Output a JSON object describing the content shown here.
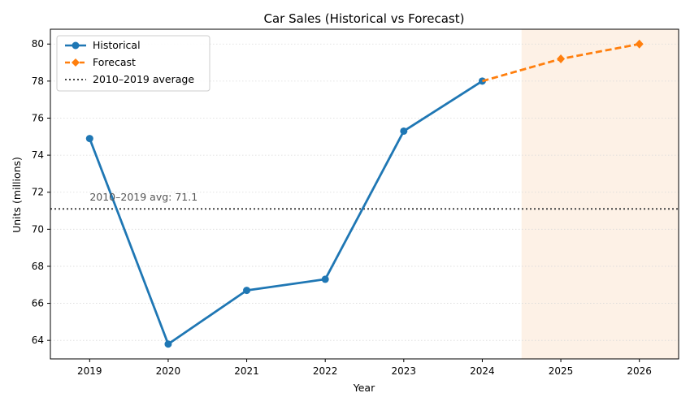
{
  "chart_data": {
    "type": "line",
    "title": "Car Sales (Historical vs Forecast)",
    "xlabel": "Year",
    "ylabel": "Units (millions)",
    "xlim": [
      2018.5,
      2026.5
    ],
    "ylim": [
      63,
      80.8
    ],
    "x_ticks": [
      2019,
      2020,
      2021,
      2022,
      2023,
      2024,
      2025,
      2026
    ],
    "y_ticks": [
      64,
      66,
      68,
      70,
      72,
      74,
      76,
      78,
      80
    ],
    "grid": "horizontal dotted",
    "legend_position": "top-left",
    "forecast_region": [
      2024.5,
      2026.5
    ],
    "series": [
      {
        "name": "Historical",
        "style": "solid",
        "marker": "circle",
        "color": "#1f77b4",
        "x": [
          2019,
          2020,
          2021,
          2022,
          2023,
          2024
        ],
        "values": [
          74.9,
          63.8,
          66.7,
          67.3,
          75.3,
          78.0
        ]
      },
      {
        "name": "Forecast",
        "style": "dashed",
        "marker": "diamond",
        "color": "#ff7f0e",
        "x": [
          2024,
          2025,
          2026
        ],
        "values": [
          78.0,
          79.2,
          80.0
        ]
      }
    ],
    "reference_line": {
      "name": "2010–2019 average",
      "value": 71.1,
      "style": "dotted",
      "color": "#444444"
    },
    "annotation": {
      "text": "2010–2019 avg: 71.1",
      "x": 2019,
      "y": 71.1
    }
  }
}
